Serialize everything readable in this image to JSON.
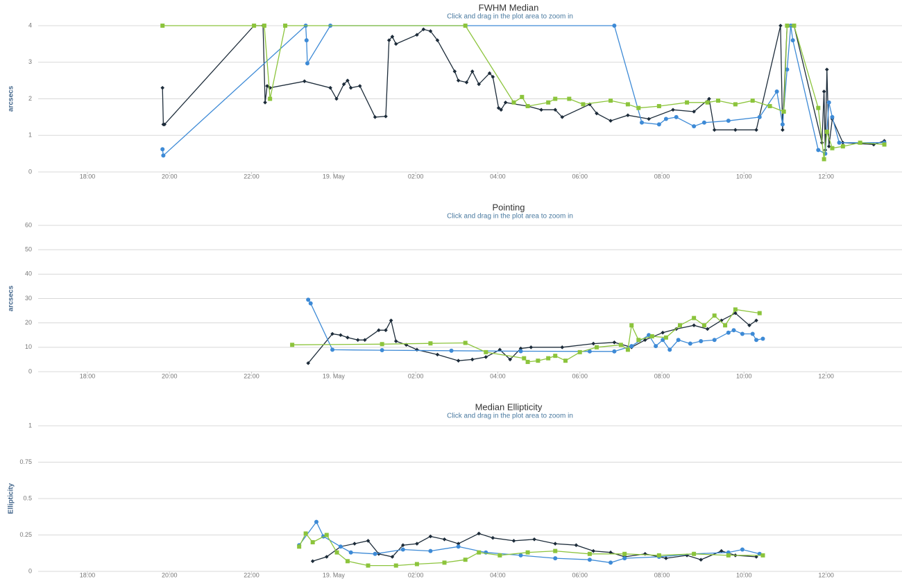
{
  "chart_data": [
    {
      "type": "line",
      "title": "FWHM Median",
      "subtitle": "Click and drag in the plot area to zoom in",
      "y_label": "arcsecs",
      "xlim": [
        -7.2,
        13.85
      ],
      "xticks": [
        {
          "value": -6,
          "label": "18:00"
        },
        {
          "value": -4,
          "label": "20:00"
        },
        {
          "value": -2,
          "label": "22:00"
        },
        {
          "value": 0,
          "label": "19. May"
        },
        {
          "value": 2,
          "label": "02:00"
        },
        {
          "value": 4,
          "label": "04:00"
        },
        {
          "value": 6,
          "label": "06:00"
        },
        {
          "value": 8,
          "label": "08:00"
        },
        {
          "value": 10,
          "label": "10:00"
        },
        {
          "value": 12,
          "label": "12:00"
        }
      ],
      "ylim": [
        0,
        4
      ],
      "yticks": [
        0,
        1,
        2,
        3,
        4
      ],
      "grid": true,
      "series": [
        {
          "color": "#1c2b39",
          "marker": "diamond",
          "x": [
            -4.17,
            -4.15,
            -4.12,
            -1.94,
            -1.72,
            -1.67,
            -1.62,
            -1.55,
            -0.71,
            -0.08,
            0.07,
            0.25,
            0.34,
            0.42,
            0.64,
            1.01,
            1.27,
            1.35,
            1.43,
            1.52,
            2.03,
            2.19,
            2.36,
            2.53,
            2.95,
            3.04,
            3.24,
            3.38,
            3.54,
            3.8,
            3.88,
            4.02,
            4.08,
            4.19,
            4.73,
            5.06,
            5.4,
            5.57,
            6.24,
            6.41,
            6.75,
            7.17,
            7.68,
            8.27,
            8.78,
            9.15,
            9.28,
            9.79,
            10.3,
            10.89,
            10.94,
            11.05,
            11.22,
            11.9,
            11.95,
            11.98,
            12.02,
            12.07,
            12.15,
            12.41,
            13.16,
            13.42
          ],
          "values": [
            2.3,
            1.3,
            1.3,
            4.0,
            4.0,
            1.9,
            2.35,
            2.3,
            2.48,
            2.3,
            2.0,
            2.4,
            2.5,
            2.3,
            2.35,
            1.5,
            1.52,
            3.6,
            3.7,
            3.5,
            3.75,
            3.9,
            3.85,
            3.6,
            2.75,
            2.5,
            2.45,
            2.75,
            2.4,
            2.7,
            2.6,
            1.75,
            1.7,
            1.9,
            1.8,
            1.7,
            1.7,
            1.5,
            1.85,
            1.6,
            1.4,
            1.55,
            1.45,
            1.7,
            1.65,
            2.0,
            1.15,
            1.15,
            1.15,
            4.0,
            1.15,
            4.0,
            4.0,
            0.8,
            2.2,
            0.6,
            2.8,
            0.7,
            1.45,
            0.8,
            0.75,
            0.85
          ]
        },
        {
          "color": "#3d8ad6",
          "marker": "circle",
          "x": [
            -4.17,
            -4.15,
            -0.68,
            -0.66,
            -0.64,
            -0.08,
            6.84,
            7.51,
            7.93,
            8.1,
            8.35,
            8.78,
            9.03,
            9.62,
            10.38,
            10.8,
            10.94,
            11.05,
            11.14,
            11.19,
            11.81,
            11.98,
            12.07,
            12.15,
            12.32,
            13.42
          ],
          "values": [
            0.62,
            0.45,
            4.0,
            3.6,
            2.97,
            4.0,
            4.0,
            1.35,
            1.3,
            1.45,
            1.5,
            1.25,
            1.35,
            1.4,
            1.5,
            2.2,
            1.3,
            2.8,
            4.0,
            3.6,
            0.6,
            0.5,
            1.9,
            1.5,
            0.8,
            0.8
          ]
        },
        {
          "color": "#8cc43c",
          "marker": "square",
          "x": [
            -4.17,
            -1.94,
            -1.69,
            -1.55,
            -1.18,
            3.21,
            4.39,
            4.59,
            4.73,
            5.23,
            5.4,
            5.74,
            6.08,
            6.75,
            7.17,
            7.43,
            7.93,
            8.61,
            9.11,
            9.37,
            9.79,
            10.21,
            10.63,
            10.97,
            11.05,
            11.22,
            11.81,
            11.95,
            12.02,
            12.15,
            12.41,
            12.83,
            13.42
          ],
          "values": [
            4.0,
            4.0,
            4.0,
            2.0,
            4.0,
            4.0,
            1.9,
            2.05,
            1.8,
            1.9,
            2.0,
            2.0,
            1.85,
            1.95,
            1.85,
            1.75,
            1.8,
            1.9,
            1.9,
            1.95,
            1.85,
            1.95,
            1.8,
            1.65,
            4.0,
            4.0,
            1.75,
            0.35,
            1.1,
            0.65,
            0.7,
            0.8,
            0.75
          ]
        }
      ]
    },
    {
      "type": "line",
      "title": "Pointing",
      "subtitle": "Click and drag in the plot area to zoom in",
      "y_label": "arcsecs",
      "xlim": [
        -7.2,
        13.85
      ],
      "xticks": [
        {
          "value": -6,
          "label": "18:00"
        },
        {
          "value": -4,
          "label": "20:00"
        },
        {
          "value": -2,
          "label": "22:00"
        },
        {
          "value": 0,
          "label": "19. May"
        },
        {
          "value": 2,
          "label": "02:00"
        },
        {
          "value": 4,
          "label": "04:00"
        },
        {
          "value": 6,
          "label": "06:00"
        },
        {
          "value": 8,
          "label": "08:00"
        },
        {
          "value": 10,
          "label": "10:00"
        },
        {
          "value": 12,
          "label": "12:00"
        }
      ],
      "ylim": [
        0,
        60
      ],
      "yticks": [
        0,
        10,
        20,
        30,
        40,
        50,
        60
      ],
      "grid": true,
      "series": [
        {
          "color": "#1c2b39",
          "marker": "diamond",
          "x": [
            -0.62,
            -0.03,
            0.17,
            0.34,
            0.59,
            0.76,
            1.1,
            1.27,
            1.4,
            1.52,
            1.77,
            2.03,
            2.53,
            3.04,
            3.38,
            3.71,
            4.05,
            4.3,
            4.56,
            4.81,
            5.57,
            6.33,
            6.84,
            7.26,
            7.59,
            8.02,
            8.35,
            8.78,
            9.11,
            9.45,
            9.79,
            10.13,
            10.3
          ],
          "values": [
            3.5,
            15.5,
            15,
            14,
            13,
            13,
            17,
            17,
            21,
            12.5,
            11,
            9,
            7,
            4.5,
            5,
            6,
            9,
            5,
            9.5,
            10,
            10,
            11.5,
            12,
            10,
            13,
            16,
            17.5,
            19,
            17.5,
            21,
            24,
            19,
            21
          ]
        },
        {
          "color": "#3d8ad6",
          "marker": "circle",
          "x": [
            -0.62,
            -0.56,
            -0.03,
            1.18,
            2.87,
            4.56,
            6.24,
            6.84,
            7.26,
            7.68,
            7.85,
            8.02,
            8.19,
            8.4,
            8.69,
            8.95,
            9.28,
            9.62,
            9.75,
            9.96,
            10.21,
            10.3,
            10.46
          ],
          "values": [
            29.5,
            28,
            9,
            8.8,
            8.6,
            8.4,
            8.3,
            8.3,
            10.5,
            15,
            10.5,
            13,
            9,
            13,
            11.5,
            12.5,
            13,
            16,
            17,
            15.5,
            15.5,
            13,
            13.5
          ]
        },
        {
          "color": "#8cc43c",
          "marker": "square",
          "x": [
            -1.01,
            1.18,
            2.36,
            3.21,
            3.71,
            4.64,
            4.73,
            4.98,
            5.23,
            5.4,
            5.65,
            6.0,
            6.41,
            7.0,
            7.17,
            7.26,
            7.43,
            7.76,
            8.1,
            8.44,
            8.78,
            9.03,
            9.28,
            9.54,
            9.79,
            10.38
          ],
          "values": [
            11,
            11.3,
            11.6,
            11.8,
            8,
            5.5,
            4,
            4.5,
            5.5,
            6.5,
            4.5,
            8,
            10,
            11,
            9,
            19,
            13,
            14.5,
            14,
            19,
            22,
            19,
            23,
            19,
            25.5,
            24
          ]
        }
      ]
    },
    {
      "type": "line",
      "title": "Median Ellipticity",
      "subtitle": "Click and drag in the plot area to zoom in",
      "y_label": "Ellipticity",
      "xlim": [
        -7.2,
        13.85
      ],
      "xticks": [
        {
          "value": -6,
          "label": "18:00"
        },
        {
          "value": -4,
          "label": "20:00"
        },
        {
          "value": -2,
          "label": "22:00"
        },
        {
          "value": 0,
          "label": "19. May"
        },
        {
          "value": 2,
          "label": "02:00"
        },
        {
          "value": 4,
          "label": "04:00"
        },
        {
          "value": 6,
          "label": "06:00"
        },
        {
          "value": 8,
          "label": "08:00"
        },
        {
          "value": 10,
          "label": "10:00"
        },
        {
          "value": 12,
          "label": "12:00"
        }
      ],
      "ylim": [
        0,
        1
      ],
      "yticks": [
        0,
        0.25,
        0.5,
        0.75,
        1
      ],
      "grid": true,
      "series": [
        {
          "color": "#1c2b39",
          "marker": "diamond",
          "x": [
            -0.51,
            -0.17,
            0.17,
            0.51,
            0.84,
            1.1,
            1.43,
            1.69,
            2.03,
            2.36,
            2.7,
            3.04,
            3.54,
            3.88,
            4.39,
            4.89,
            5.4,
            5.91,
            6.33,
            6.75,
            7.09,
            7.59,
            8.1,
            8.61,
            8.95,
            9.45,
            9.79,
            10.3
          ],
          "values": [
            0.07,
            0.1,
            0.17,
            0.19,
            0.21,
            0.12,
            0.1,
            0.18,
            0.19,
            0.24,
            0.22,
            0.19,
            0.26,
            0.23,
            0.21,
            0.22,
            0.19,
            0.18,
            0.14,
            0.13,
            0.1,
            0.12,
            0.09,
            0.11,
            0.08,
            0.14,
            0.11,
            0.1
          ]
        },
        {
          "color": "#3d8ad6",
          "marker": "circle",
          "x": [
            -0.84,
            -0.42,
            -0.25,
            0.17,
            0.42,
            1.01,
            1.69,
            2.36,
            3.04,
            3.71,
            4.56,
            5.4,
            6.24,
            6.75,
            7.09,
            7.93,
            8.78,
            9.62,
            9.96,
            10.38
          ],
          "values": [
            0.18,
            0.34,
            0.24,
            0.17,
            0.13,
            0.12,
            0.15,
            0.14,
            0.17,
            0.13,
            0.11,
            0.09,
            0.08,
            0.06,
            0.09,
            0.1,
            0.12,
            0.13,
            0.15,
            0.12
          ]
        },
        {
          "color": "#8cc43c",
          "marker": "square",
          "x": [
            -0.84,
            -0.68,
            -0.51,
            -0.17,
            0.08,
            0.34,
            0.84,
            1.52,
            2.03,
            2.7,
            3.21,
            3.54,
            4.05,
            4.73,
            5.4,
            6.24,
            7.09,
            7.93,
            8.78,
            9.62,
            10.46
          ],
          "values": [
            0.17,
            0.26,
            0.2,
            0.25,
            0.13,
            0.07,
            0.04,
            0.04,
            0.05,
            0.06,
            0.08,
            0.13,
            0.11,
            0.13,
            0.14,
            0.12,
            0.12,
            0.11,
            0.12,
            0.11,
            0.11
          ]
        }
      ]
    }
  ]
}
